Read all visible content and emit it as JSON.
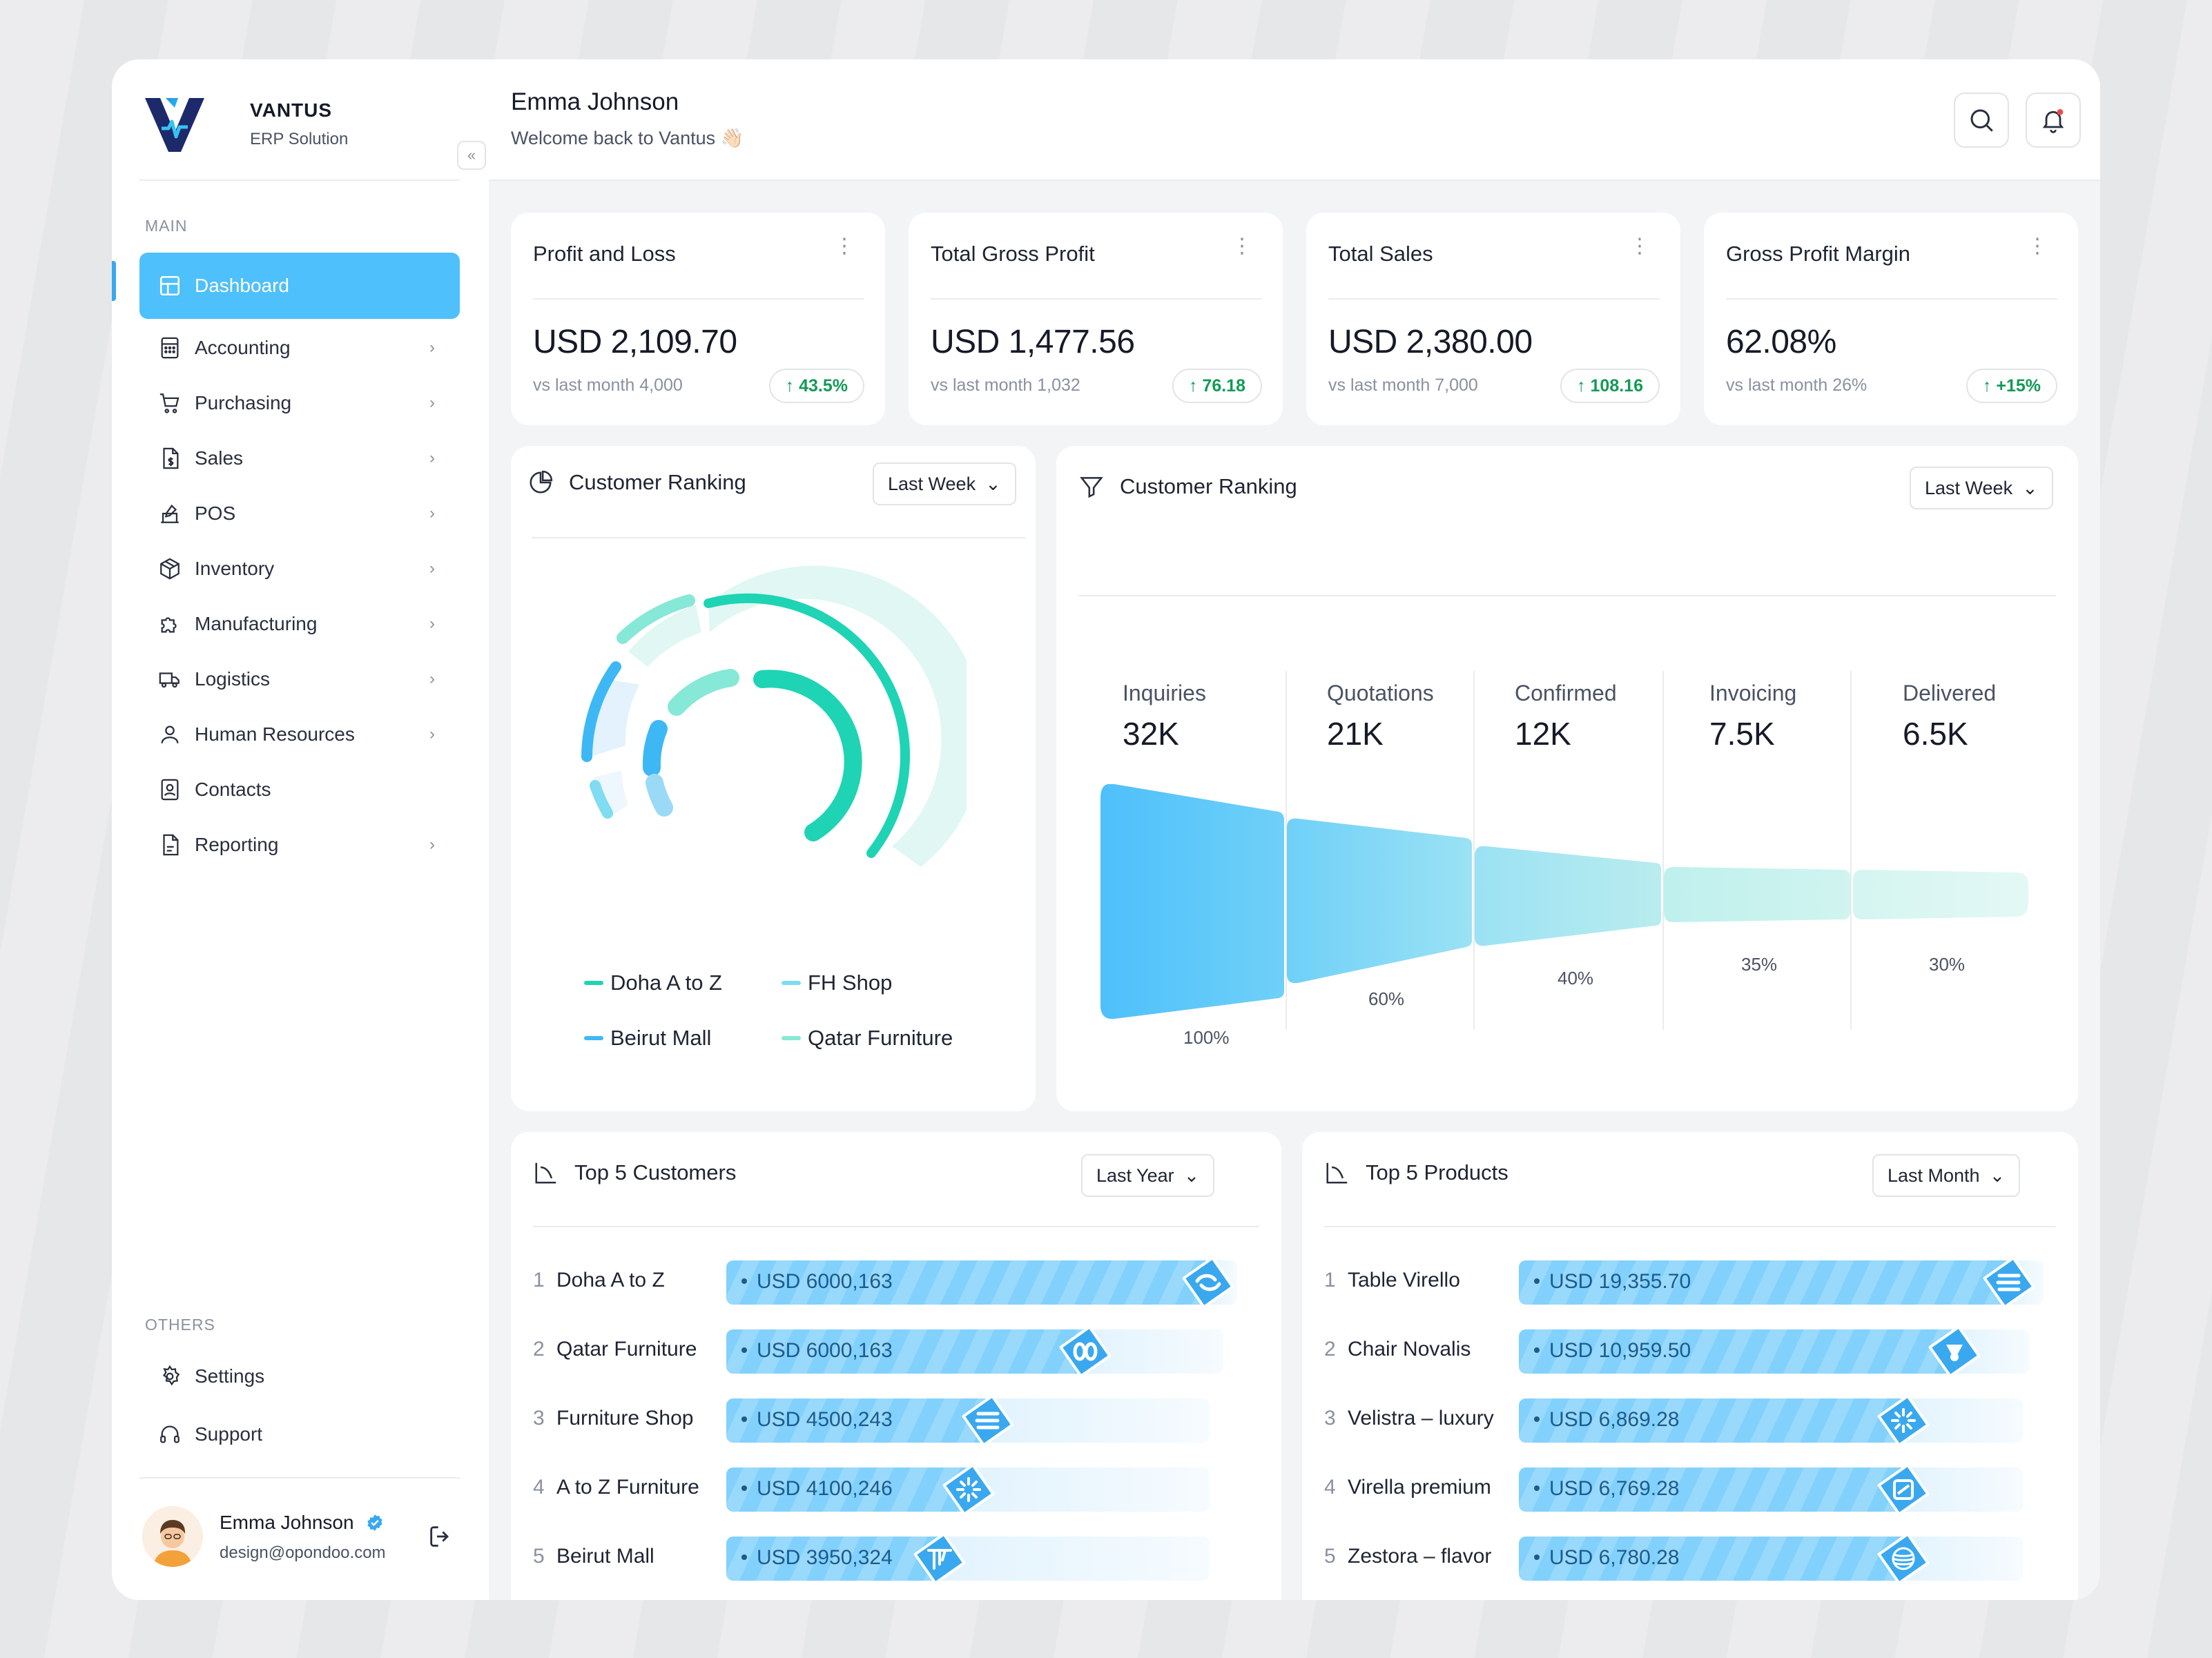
{
  "brand": {
    "name": "VANTUS",
    "subtitle": "ERP Solution",
    "collapse_glyph": "«"
  },
  "sidebar": {
    "section_main": "MAIN",
    "section_others": "OTHERS",
    "items": [
      {
        "label": "Dashboard",
        "icon": "grid-icon"
      },
      {
        "label": "Accounting",
        "icon": "calculator-icon"
      },
      {
        "label": "Purchasing",
        "icon": "cart-icon"
      },
      {
        "label": "Sales",
        "icon": "sales-icon"
      },
      {
        "label": "POS",
        "icon": "pos-icon"
      },
      {
        "label": "Inventory",
        "icon": "box-icon"
      },
      {
        "label": "Manufacturing",
        "icon": "puzzle-icon"
      },
      {
        "label": "Logistics",
        "icon": "truck-icon"
      },
      {
        "label": "Human Resources",
        "icon": "user-icon"
      },
      {
        "label": "Contacts",
        "icon": "contacts-icon"
      },
      {
        "label": "Reporting",
        "icon": "report-icon"
      }
    ],
    "others": [
      {
        "label": "Settings",
        "icon": "gear-icon"
      },
      {
        "label": "Support",
        "icon": "headset-icon"
      }
    ],
    "user": {
      "name": "Emma Johnson",
      "email": "design@opondoo.com"
    }
  },
  "header": {
    "name": "Emma Johnson",
    "welcome": "Welcome back to Vantus 👋🏻"
  },
  "kpis": [
    {
      "title": "Profit and Loss",
      "value": "USD 2,109.70",
      "prev": "vs last month 4,000",
      "change": "↑ 43.5%"
    },
    {
      "title": "Total Gross Profit",
      "value": "USD 1,477.56",
      "prev": "vs last month 1,032",
      "change": "↑ 76.18"
    },
    {
      "title": "Total Sales",
      "value": "USD 2,380.00",
      "prev": "vs last month 7,000",
      "change": "↑ 108.16"
    },
    {
      "title": "Gross Profit Margin",
      "value": "62.08%",
      "prev": "vs last month 26%",
      "change": "↑ +15%"
    }
  ],
  "customer_ranking_radial": {
    "title": "Customer Ranking",
    "period": "Last Week",
    "legend": [
      {
        "name": "Doha A to Z",
        "color": "#1ed4b4"
      },
      {
        "name": "FH Shop",
        "color": "#7fdcf2"
      },
      {
        "name": "Beirut Mall",
        "color": "#3db8f5"
      },
      {
        "name": "Qatar Furniture",
        "color": "#86e8d6"
      }
    ]
  },
  "customer_ranking_funnel": {
    "title": "Customer Ranking",
    "period": "Last Week",
    "stages": [
      {
        "label": "Inquiries",
        "value": "32K",
        "pct": "100%"
      },
      {
        "label": "Quotations",
        "value": "21K",
        "pct": "60%"
      },
      {
        "label": "Confirmed",
        "value": "12K",
        "pct": "40%"
      },
      {
        "label": "Invoicing",
        "value": "7.5K",
        "pct": "35%"
      },
      {
        "label": "Delivered",
        "value": "6.5K",
        "pct": "30%"
      }
    ]
  },
  "top_customers": {
    "title": "Top 5 Customers",
    "period": "Last Year",
    "rows": [
      {
        "rank": "1",
        "name": "Doha A to Z",
        "amount": "USD 6000,163",
        "fill": 0.97
      },
      {
        "rank": "2",
        "name": "Qatar Furniture",
        "amount": "USD 6000,163",
        "fill": 0.75
      },
      {
        "rank": "3",
        "name": "Furniture Shop",
        "amount": "USD 4500,243",
        "fill": 0.57
      },
      {
        "rank": "4",
        "name": "A to Z Furniture",
        "amount": "USD 4100,246",
        "fill": 0.53
      },
      {
        "rank": "5",
        "name": "Beirut Mall",
        "amount": "USD 3950,324",
        "fill": 0.47
      }
    ]
  },
  "top_products": {
    "title": "Top 5 Products",
    "period": "Last Month",
    "rows": [
      {
        "rank": "1",
        "name": "Table Virello",
        "amount": "USD 19,355.70",
        "fill": 0.96
      },
      {
        "rank": "2",
        "name": "Chair Novalis",
        "amount": "USD 10,959.50",
        "fill": 0.88
      },
      {
        "rank": "3",
        "name": "Velistra – luxury",
        "amount": "USD 6,869.28",
        "fill": 0.79
      },
      {
        "rank": "4",
        "name": "Virella premium",
        "amount": "USD 6,769.28",
        "fill": 0.79
      },
      {
        "rank": "5",
        "name": "Zestora – flavor",
        "amount": "USD 6,780.28",
        "fill": 0.79
      }
    ]
  },
  "colors": {
    "accent": "#4ec0fb",
    "positive": "#129a55",
    "teal": "#1ed4b4",
    "brand_dark": "#1c2a6b"
  }
}
